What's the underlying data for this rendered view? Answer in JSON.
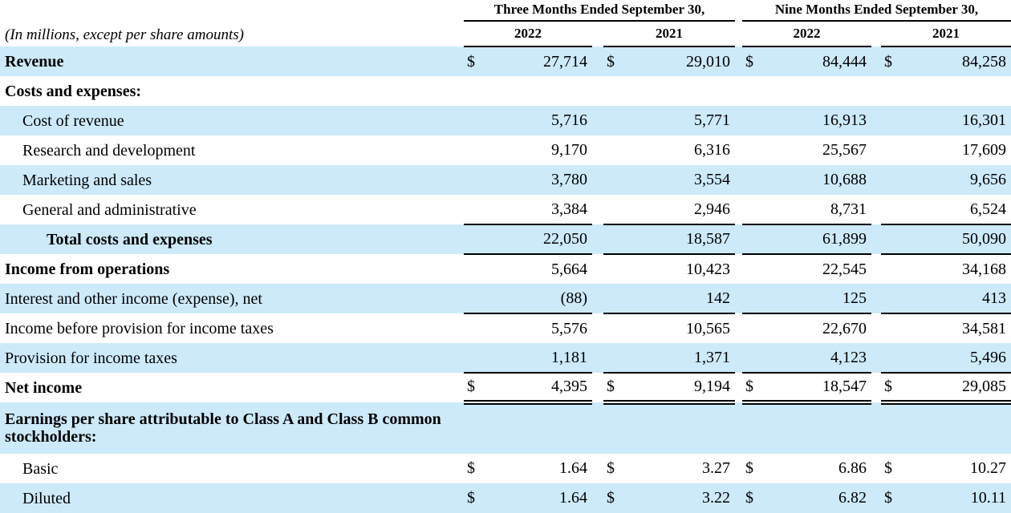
{
  "caption": "(In millions, except per share amounts)",
  "header": {
    "groups": [
      "Three Months Ended September 30,",
      "Nine Months Ended September 30,"
    ],
    "years": [
      "2022",
      "2021",
      "2022",
      "2021"
    ]
  },
  "colors": {
    "row_highlight": "#cdeafb",
    "rule": "#000000",
    "text": "#000000"
  },
  "rows": [
    {
      "name": "revenue",
      "label": "Revenue",
      "bold": true,
      "indent": 0,
      "highlight": true,
      "dollar": true,
      "border_bottom": "none",
      "values": [
        "27,714",
        "29,010",
        "84,444",
        "84,258"
      ]
    },
    {
      "name": "costs-and-expenses-header",
      "label": "Costs and expenses:",
      "bold": true,
      "indent": 0,
      "highlight": false,
      "dollar": false,
      "border_bottom": "none",
      "values": [
        "",
        "",
        "",
        ""
      ]
    },
    {
      "name": "cost-of-revenue",
      "label": "Cost of revenue",
      "bold": false,
      "indent": 1,
      "highlight": true,
      "dollar": false,
      "border_bottom": "none",
      "values": [
        "5,716",
        "5,771",
        "16,913",
        "16,301"
      ]
    },
    {
      "name": "research-and-development",
      "label": "Research and development",
      "bold": false,
      "indent": 1,
      "highlight": false,
      "dollar": false,
      "border_bottom": "none",
      "values": [
        "9,170",
        "6,316",
        "25,567",
        "17,609"
      ]
    },
    {
      "name": "marketing-and-sales",
      "label": "Marketing and sales",
      "bold": false,
      "indent": 1,
      "highlight": true,
      "dollar": false,
      "border_bottom": "none",
      "values": [
        "3,780",
        "3,554",
        "10,688",
        "9,656"
      ]
    },
    {
      "name": "general-and-administrative",
      "label": "General and administrative",
      "bold": false,
      "indent": 1,
      "highlight": false,
      "dollar": false,
      "border_bottom": "single",
      "values": [
        "3,384",
        "2,946",
        "8,731",
        "6,524"
      ]
    },
    {
      "name": "total-costs-and-expenses",
      "label": "Total costs and expenses",
      "bold": true,
      "indent": 2,
      "highlight": true,
      "dollar": false,
      "border_bottom": "single",
      "values": [
        "22,050",
        "18,587",
        "61,899",
        "50,090"
      ]
    },
    {
      "name": "income-from-operations",
      "label": "Income from operations",
      "bold": true,
      "indent": 0,
      "highlight": false,
      "dollar": false,
      "border_bottom": "none",
      "values": [
        "5,664",
        "10,423",
        "22,545",
        "34,168"
      ]
    },
    {
      "name": "interest-and-other-income-expense-net",
      "label": "Interest and other income (expense), net",
      "bold": false,
      "indent": 0,
      "highlight": true,
      "dollar": false,
      "border_bottom": "single",
      "values": [
        "(88)",
        "142",
        "125",
        "413"
      ]
    },
    {
      "name": "income-before-provision-for-income-taxes",
      "label": "Income before provision for income taxes",
      "bold": false,
      "indent": 0,
      "highlight": false,
      "dollar": false,
      "border_bottom": "none",
      "values": [
        "5,576",
        "10,565",
        "22,670",
        "34,581"
      ]
    },
    {
      "name": "provision-for-income-taxes",
      "label": "Provision for income taxes",
      "bold": false,
      "indent": 0,
      "highlight": true,
      "dollar": false,
      "border_bottom": "single",
      "values": [
        "1,181",
        "1,371",
        "4,123",
        "5,496"
      ]
    },
    {
      "name": "net-income",
      "label": "Net income",
      "bold": true,
      "indent": 0,
      "highlight": false,
      "dollar": true,
      "border_bottom": "double",
      "values": [
        "4,395",
        "9,194",
        "18,547",
        "29,085"
      ]
    },
    {
      "name": "eps-section-header",
      "label": "Earnings per share attributable to Class A and Class B common stockholders:",
      "bold": true,
      "indent": 0,
      "highlight": true,
      "dollar": false,
      "border_bottom": "none",
      "tall": true,
      "values": [
        "",
        "",
        "",
        ""
      ]
    },
    {
      "name": "eps-basic",
      "label": "Basic",
      "bold": false,
      "indent": 1,
      "highlight": false,
      "dollar": true,
      "border_bottom": "none",
      "values": [
        "1.64",
        "3.27",
        "6.86",
        "10.27"
      ]
    },
    {
      "name": "eps-diluted",
      "label": "Diluted",
      "bold": false,
      "indent": 1,
      "highlight": true,
      "dollar": true,
      "border_bottom": "none",
      "values": [
        "1.64",
        "3.22",
        "6.82",
        "10.11"
      ]
    }
  ]
}
